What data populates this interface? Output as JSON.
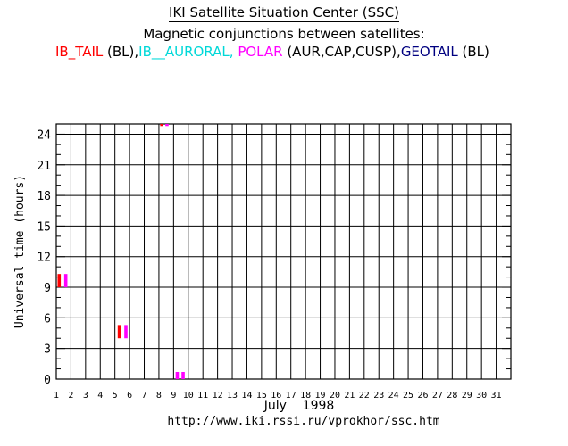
{
  "header": {
    "title": "IKI Satellite Situation Center (SSC)",
    "subtitle": "Magnetic conjunctions between satellites:",
    "legend_parts": [
      {
        "text": "IB_TAIL",
        "color": "#ff0000"
      },
      {
        "text": " (BL),",
        "color": "#000000"
      },
      {
        "text": "IB__AURORAL,",
        "color": "#00d8d8"
      },
      {
        "text": " POLAR",
        "color": "#ff00ff"
      },
      {
        "text": " (AUR,CAP,CUSP),",
        "color": "#000000"
      },
      {
        "text": "GEOTAIL",
        "color": "#000080"
      },
      {
        "text": " (BL)",
        "color": "#000000"
      }
    ]
  },
  "footer": {
    "url": "http://www.iki.rssi.ru/vprokhor/ssc.htm"
  },
  "chart_data": {
    "type": "scatter",
    "xlabel": "July    1998",
    "ylabel": "Universal time (hours)",
    "xlim": [
      1,
      32
    ],
    "ylim": [
      0,
      25
    ],
    "x_ticks": [
      "1",
      "2",
      "3",
      "4",
      "5",
      "6",
      "7",
      "8",
      "9",
      "10",
      "11",
      "12",
      "13",
      "14",
      "15",
      "16",
      "17",
      "18",
      "19",
      "20",
      "21",
      "22",
      "23",
      "24",
      "25",
      "26",
      "27",
      "28",
      "29",
      "30",
      "31"
    ],
    "y_ticks": [
      0,
      3,
      6,
      9,
      12,
      15,
      18,
      21,
      24
    ],
    "grid": true,
    "series": [
      {
        "name": "IB_TAIL",
        "color": "#ff0000",
        "marks": [
          {
            "x": 1.2,
            "y0": 9.0,
            "y1": 10.3
          },
          {
            "x": 5.3,
            "y0": 4.0,
            "y1": 5.3
          },
          {
            "x": 8.2,
            "y0": 24.8,
            "y1": 25.0
          }
        ]
      },
      {
        "name": "POLAR",
        "color": "#ff00ff",
        "marks": [
          {
            "x": 1.65,
            "y0": 9.0,
            "y1": 10.3
          },
          {
            "x": 5.75,
            "y0": 4.0,
            "y1": 5.3
          },
          {
            "x": 8.55,
            "y0": 24.8,
            "y1": 25.0
          },
          {
            "x": 9.25,
            "y0": 0.0,
            "y1": 0.7
          },
          {
            "x": 9.65,
            "y0": 0.0,
            "y1": 0.7
          }
        ]
      }
    ]
  }
}
